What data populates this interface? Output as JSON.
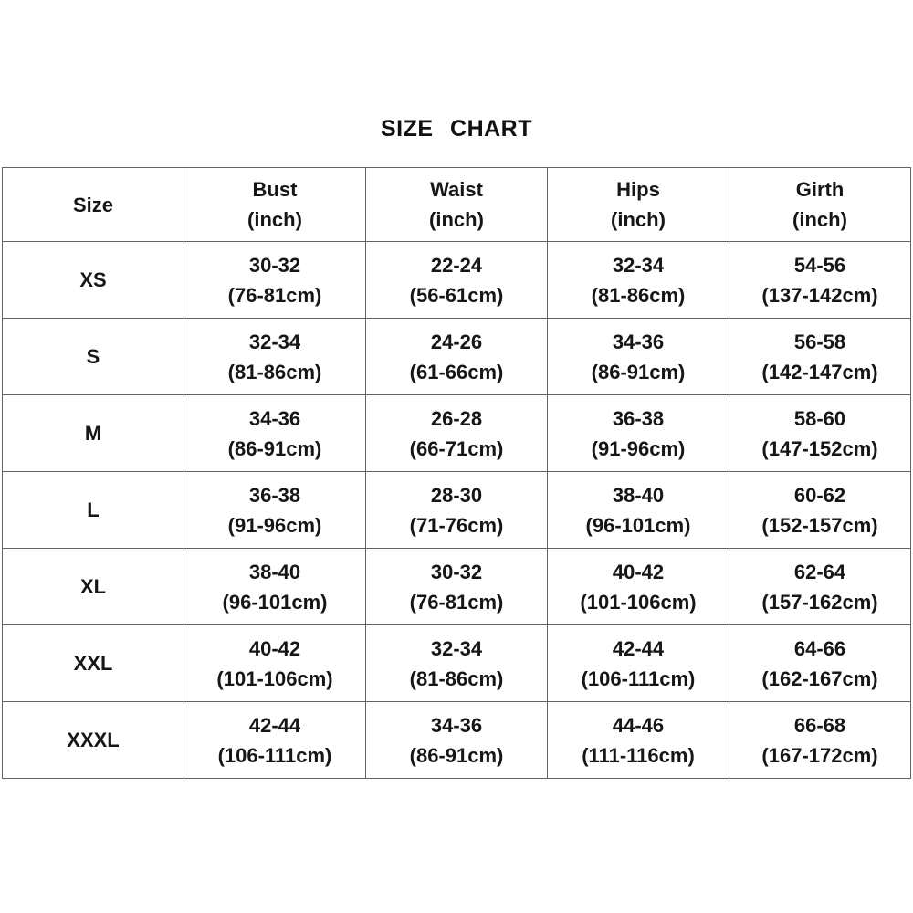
{
  "title": "SIZE CHART",
  "colors": {
    "background": "#ffffff",
    "text": "#151515",
    "border": "#646464"
  },
  "table": {
    "headers": [
      {
        "name": "Size",
        "unit": ""
      },
      {
        "name": "Bust",
        "unit": "(inch)"
      },
      {
        "name": "Waist",
        "unit": "(inch)"
      },
      {
        "name": "Hips",
        "unit": "(inch)"
      },
      {
        "name": "Girth",
        "unit": "(inch)"
      }
    ],
    "rows": [
      {
        "size": "XS",
        "cells": [
          [
            "30-32",
            "(76-81cm)"
          ],
          [
            "22-24",
            "(56-61cm)"
          ],
          [
            "32-34",
            "(81-86cm)"
          ],
          [
            "54-56",
            "(137-142cm)"
          ]
        ]
      },
      {
        "size": "S",
        "cells": [
          [
            "32-34",
            "(81-86cm)"
          ],
          [
            "24-26",
            "(61-66cm)"
          ],
          [
            "34-36",
            "(86-91cm)"
          ],
          [
            "56-58",
            "(142-147cm)"
          ]
        ]
      },
      {
        "size": "M",
        "cells": [
          [
            "34-36",
            "(86-91cm)"
          ],
          [
            "26-28",
            "(66-71cm)"
          ],
          [
            "36-38",
            "(91-96cm)"
          ],
          [
            "58-60",
            "(147-152cm)"
          ]
        ]
      },
      {
        "size": "L",
        "cells": [
          [
            "36-38",
            "(91-96cm)"
          ],
          [
            "28-30",
            "(71-76cm)"
          ],
          [
            "38-40",
            "(96-101cm)"
          ],
          [
            "60-62",
            "(152-157cm)"
          ]
        ]
      },
      {
        "size": "XL",
        "cells": [
          [
            "38-40",
            "(96-101cm)"
          ],
          [
            "30-32",
            "(76-81cm)"
          ],
          [
            "40-42",
            "(101-106cm)"
          ],
          [
            "62-64",
            "(157-162cm)"
          ]
        ]
      },
      {
        "size": "XXL",
        "cells": [
          [
            "40-42",
            "(101-106cm)"
          ],
          [
            "32-34",
            "(81-86cm)"
          ],
          [
            "42-44",
            "(106-111cm)"
          ],
          [
            "64-66",
            "(162-167cm)"
          ]
        ]
      },
      {
        "size": "XXXL",
        "cells": [
          [
            "42-44",
            "(106-111cm)"
          ],
          [
            "34-36",
            "(86-91cm)"
          ],
          [
            "44-46",
            "(111-116cm)"
          ],
          [
            "66-68",
            "(167-172cm)"
          ]
        ]
      }
    ]
  },
  "chart_data": {
    "type": "table",
    "title": "SIZE CHART",
    "columns": [
      "Size",
      "Bust (inch)",
      "Waist (inch)",
      "Hips (inch)",
      "Girth (inch)"
    ],
    "rows": [
      [
        "XS",
        "30-32 (76-81cm)",
        "22-24 (56-61cm)",
        "32-34 (81-86cm)",
        "54-56 (137-142cm)"
      ],
      [
        "S",
        "32-34 (81-86cm)",
        "24-26 (61-66cm)",
        "34-36 (86-91cm)",
        "56-58 (142-147cm)"
      ],
      [
        "M",
        "34-36 (86-91cm)",
        "26-28 (66-71cm)",
        "36-38 (91-96cm)",
        "58-60 (147-152cm)"
      ],
      [
        "L",
        "36-38 (91-96cm)",
        "28-30 (71-76cm)",
        "38-40 (96-101cm)",
        "60-62 (152-157cm)"
      ],
      [
        "XL",
        "38-40 (96-101cm)",
        "30-32 (76-81cm)",
        "40-42 (101-106cm)",
        "62-64 (157-162cm)"
      ],
      [
        "XXL",
        "40-42 (101-106cm)",
        "32-34 (81-86cm)",
        "42-44 (106-111cm)",
        "64-66 (162-167cm)"
      ],
      [
        "XXXL",
        "42-44 (106-111cm)",
        "34-36 (86-91cm)",
        "44-46 (111-116cm)",
        "66-68 (167-172cm)"
      ]
    ]
  }
}
